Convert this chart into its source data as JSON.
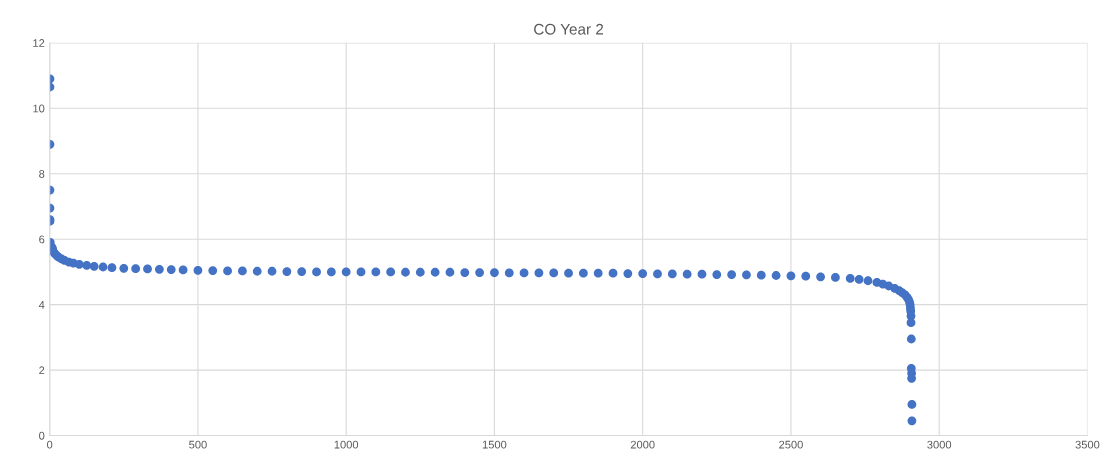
{
  "chart_data": {
    "type": "scatter",
    "title": "CO Year 2",
    "x": [
      1,
      1,
      1,
      1,
      1,
      1,
      1,
      2,
      8,
      10,
      14,
      18,
      24,
      30,
      40,
      50,
      65,
      80,
      100,
      125,
      150,
      180,
      210,
      250,
      290,
      330,
      370,
      410,
      450,
      500,
      550,
      600,
      650,
      700,
      750,
      800,
      850,
      900,
      950,
      1000,
      1050,
      1100,
      1150,
      1200,
      1250,
      1300,
      1350,
      1400,
      1450,
      1500,
      1550,
      1600,
      1650,
      1700,
      1750,
      1800,
      1850,
      1900,
      1950,
      2000,
      2050,
      2100,
      2150,
      2200,
      2250,
      2300,
      2350,
      2400,
      2450,
      2500,
      2550,
      2600,
      2650,
      2700,
      2730,
      2760,
      2790,
      2810,
      2830,
      2850,
      2865,
      2875,
      2885,
      2892,
      2897,
      2900,
      2902,
      2903,
      2904,
      2905,
      2905,
      2906,
      2906,
      2907,
      2907,
      2908,
      2908
    ],
    "series": [
      {
        "color": "#4472c4",
        "values": [
          10.9,
          10.65,
          8.9,
          7.5,
          6.95,
          6.6,
          6.55,
          5.9,
          5.75,
          5.7,
          5.6,
          5.55,
          5.5,
          5.45,
          5.4,
          5.35,
          5.3,
          5.27,
          5.23,
          5.2,
          5.17,
          5.15,
          5.13,
          5.11,
          5.1,
          5.09,
          5.08,
          5.07,
          5.06,
          5.05,
          5.04,
          5.03,
          5.03,
          5.02,
          5.02,
          5.01,
          5.01,
          5.0,
          5.0,
          5.0,
          5.0,
          5.0,
          5.0,
          4.99,
          4.99,
          4.99,
          4.99,
          4.98,
          4.98,
          4.98,
          4.97,
          4.97,
          4.97,
          4.97,
          4.96,
          4.96,
          4.96,
          4.96,
          4.95,
          4.95,
          4.94,
          4.94,
          4.93,
          4.93,
          4.92,
          4.92,
          4.91,
          4.9,
          4.89,
          4.88,
          4.87,
          4.85,
          4.83,
          4.8,
          4.77,
          4.73,
          4.68,
          4.63,
          4.57,
          4.5,
          4.43,
          4.37,
          4.3,
          4.22,
          4.15,
          4.08,
          4.0,
          3.9,
          3.8,
          3.65,
          3.45,
          2.95,
          2.05,
          1.9,
          1.75,
          0.95,
          0.45
        ]
      }
    ],
    "xlim": [
      0,
      3500
    ],
    "xticks": [
      0,
      500,
      1000,
      1500,
      2000,
      2500,
      3000,
      3500
    ],
    "ylim": [
      0,
      12
    ],
    "yticks": [
      0,
      2,
      4,
      6,
      8,
      10,
      12
    ],
    "grid": true,
    "marker": "circle"
  }
}
